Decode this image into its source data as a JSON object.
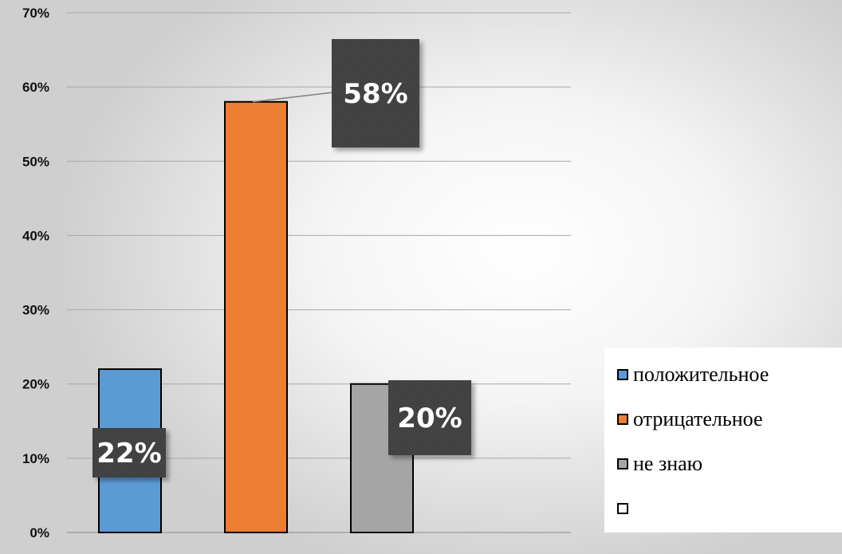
{
  "chart_data": {
    "type": "bar",
    "categories": [
      "положительное",
      "отрицательное",
      "не знаю"
    ],
    "values": [
      22,
      58,
      20
    ],
    "data_labels": [
      "22%",
      "58%",
      "20%"
    ],
    "ylim": [
      0,
      70
    ],
    "yticks": [
      "0%",
      "10%",
      "20%",
      "30%",
      "40%",
      "50%",
      "60%",
      "70%"
    ],
    "grid": true,
    "legend": "right",
    "colors": [
      "#5b9bd5",
      "#ed7d31",
      "#a5a5a5"
    ],
    "legend_items": [
      {
        "label": "положительное",
        "color": "#5b9bd5"
      },
      {
        "label": "отрицательное",
        "color": "#ed7d31"
      },
      {
        "label": "не знаю",
        "color": "#a5a5a5"
      },
      {
        "label": "",
        "color": "#ffffff"
      }
    ]
  }
}
